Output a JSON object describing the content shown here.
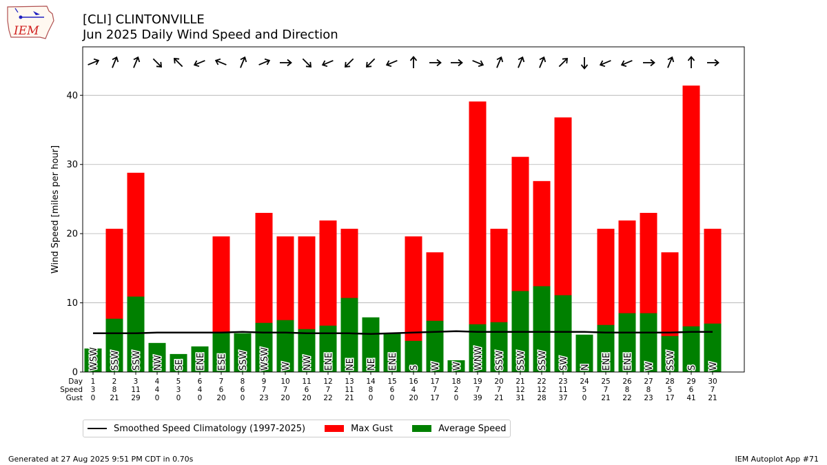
{
  "header": {
    "title_line1": "[CLI] CLINTONVILLE",
    "title_line2": "Jun 2025 Daily Wind Speed and Direction",
    "logo_text": "IEM"
  },
  "chart_data": {
    "type": "bar",
    "title": "[CLI] CLINTONVILLE Jun 2025 Daily Wind Speed and Direction",
    "ylabel": "Wind Speed [miles per hour]",
    "ylim": [
      0,
      47
    ],
    "yticks": [
      0,
      10,
      20,
      30,
      40
    ],
    "grid": true,
    "row_labels": [
      "Day",
      "Speed",
      "Gust"
    ],
    "days": [
      1,
      2,
      3,
      4,
      5,
      6,
      7,
      8,
      9,
      10,
      11,
      12,
      13,
      14,
      15,
      16,
      17,
      18,
      19,
      20,
      21,
      22,
      23,
      24,
      25,
      26,
      27,
      28,
      29,
      30
    ],
    "speed_labels": [
      3,
      8,
      11,
      4,
      3,
      4,
      6,
      6,
      7,
      7,
      6,
      7,
      11,
      8,
      6,
      4,
      7,
      2,
      7,
      7,
      12,
      12,
      11,
      5,
      7,
      8,
      8,
      5,
      6,
      7
    ],
    "gust_labels": [
      0,
      21,
      29,
      0,
      0,
      0,
      20,
      0,
      23,
      20,
      20,
      22,
      21,
      0,
      0,
      20,
      17,
      0,
      39,
      21,
      31,
      28,
      37,
      0,
      21,
      22,
      23,
      17,
      41,
      21
    ],
    "directions": [
      "WSW",
      "SSW",
      "SSW",
      "NW",
      "SE",
      "ENE",
      "ESE",
      "SSW",
      "WSW",
      "W",
      "NW",
      "ENE",
      "NE",
      "NE",
      "ENE",
      "S",
      "W",
      "W",
      "WNW",
      "SSW",
      "SSW",
      "SSW",
      "SW",
      "N",
      "ENE",
      "ENE",
      "W",
      "SSW",
      "S",
      "W"
    ],
    "series": [
      {
        "name": "Max Gust",
        "color": "#ff0000",
        "values": [
          0,
          20.7,
          28.8,
          0,
          0,
          0,
          19.6,
          0,
          23.0,
          19.6,
          19.6,
          21.9,
          20.7,
          0,
          0,
          19.6,
          17.3,
          0,
          39.1,
          20.7,
          31.1,
          27.6,
          36.8,
          0,
          20.7,
          21.9,
          23.0,
          17.3,
          41.4,
          20.7
        ]
      },
      {
        "name": "Average Speed",
        "color": "#008000",
        "values": [
          3.4,
          7.7,
          10.9,
          4.2,
          2.6,
          3.7,
          5.8,
          5.6,
          7.1,
          7.5,
          6.2,
          6.7,
          10.7,
          7.9,
          5.6,
          4.5,
          7.4,
          1.7,
          6.9,
          7.2,
          11.7,
          12.4,
          11.1,
          5.4,
          6.8,
          8.5,
          8.5,
          5.2,
          6.6,
          7.0
        ]
      },
      {
        "name": "Smoothed Speed Climatology (1997-2025)",
        "color": "#000000",
        "values": [
          5.6,
          5.6,
          5.6,
          5.7,
          5.7,
          5.7,
          5.7,
          5.8,
          5.7,
          5.7,
          5.6,
          5.6,
          5.6,
          5.5,
          5.6,
          5.7,
          5.8,
          5.9,
          5.8,
          5.8,
          5.8,
          5.8,
          5.8,
          5.8,
          5.7,
          5.7,
          5.7,
          5.7,
          5.8,
          5.8
        ]
      }
    ],
    "legend_placement": "bottom-left"
  },
  "legend": {
    "climo_label": "Smoothed Speed Climatology (1997-2025)",
    "gust_label": "Max Gust",
    "avg_label": "Average Speed"
  },
  "footer": {
    "generated": "Generated at 27 Aug 2025 9:51 PM CDT in 0.70s",
    "app": "IEM Autoplot App #71"
  }
}
